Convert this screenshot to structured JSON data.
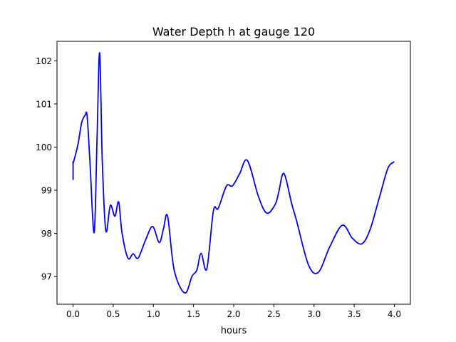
{
  "chart_data": {
    "type": "line",
    "title": "Water Depth h at gauge 120",
    "xlabel": "hours",
    "ylabel": "",
    "xlim": [
      -0.2,
      4.2
    ],
    "ylim": [
      96.36,
      102.45
    ],
    "xticks": [
      0.0,
      0.5,
      1.0,
      1.5,
      2.0,
      2.5,
      3.0,
      3.5,
      4.0
    ],
    "xtick_labels": [
      "0.0",
      "0.5",
      "1.0",
      "1.5",
      "2.0",
      "2.5",
      "3.0",
      "3.5",
      "4.0"
    ],
    "yticks": [
      97,
      98,
      99,
      100,
      101,
      102
    ],
    "ytick_labels": [
      "97",
      "98",
      "99",
      "100",
      "101",
      "102"
    ],
    "grid": false,
    "series": [
      {
        "name": "h",
        "color": "#0000ff",
        "x": [
          0.0,
          0.0,
          0.005,
          0.062,
          0.106,
          0.151,
          0.175,
          0.21,
          0.263,
          0.299,
          0.331,
          0.364,
          0.408,
          0.464,
          0.521,
          0.568,
          0.609,
          0.683,
          0.748,
          0.81,
          0.905,
          0.991,
          1.073,
          1.126,
          1.177,
          1.259,
          1.392,
          1.481,
          1.541,
          1.594,
          1.665,
          1.747,
          1.807,
          1.91,
          1.984,
          2.073,
          2.17,
          2.309,
          2.412,
          2.516,
          2.561,
          2.625,
          2.723,
          2.782,
          2.929,
          3.054,
          3.196,
          3.353,
          3.477,
          3.595,
          3.698,
          3.816,
          3.92,
          4.0
        ],
        "y": [
          99.24,
          99.66,
          99.65,
          100.07,
          100.56,
          100.74,
          100.72,
          99.67,
          98.02,
          100.23,
          102.18,
          99.67,
          98.06,
          98.65,
          98.4,
          98.73,
          98.02,
          97.43,
          97.53,
          97.43,
          97.86,
          98.16,
          97.79,
          98.11,
          98.4,
          97.15,
          96.62,
          97.01,
          97.15,
          97.54,
          97.18,
          98.52,
          98.58,
          99.1,
          99.1,
          99.38,
          99.69,
          98.85,
          98.47,
          98.67,
          98.96,
          99.39,
          98.68,
          98.3,
          97.28,
          97.1,
          97.69,
          98.19,
          97.89,
          97.76,
          98.09,
          98.85,
          99.51,
          99.66
        ]
      }
    ]
  }
}
